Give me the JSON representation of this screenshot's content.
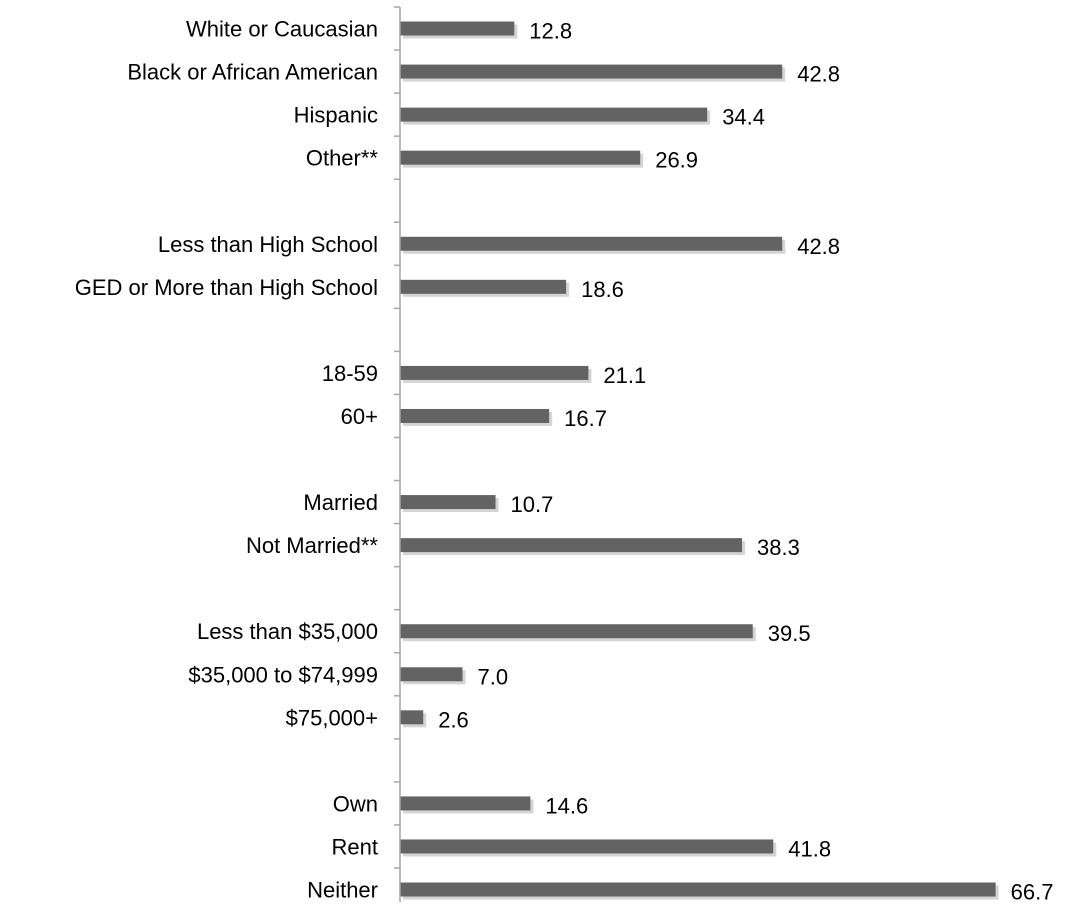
{
  "chart_data": {
    "type": "bar",
    "orientation": "horizontal",
    "title": "",
    "xlabel": "",
    "ylabel": "",
    "xlim": [
      0,
      66.7
    ],
    "grid": false,
    "legend": "none",
    "bar_color": "#636363",
    "bar_shadow_color": "#d4d4d4",
    "axis_color": "#a6a6a6",
    "groups": [
      {
        "categories": [
          "White or Caucasian",
          "Black or African American",
          "Hispanic",
          "Other**"
        ],
        "values": [
          12.8,
          42.8,
          34.4,
          26.9
        ]
      },
      {
        "categories": [
          "Less than High School",
          "GED or More than High School"
        ],
        "values": [
          42.8,
          18.6
        ]
      },
      {
        "categories": [
          "18-59",
          "60+"
        ],
        "values": [
          21.1,
          16.7
        ]
      },
      {
        "categories": [
          "Married",
          "Not Married**"
        ],
        "values": [
          10.7,
          38.3
        ]
      },
      {
        "categories": [
          "Less than $35,000",
          "$35,000 to $74,999",
          "$75,000+"
        ],
        "values": [
          39.5,
          7.0,
          2.6
        ]
      },
      {
        "categories": [
          "Own",
          "Rent",
          "Neither"
        ],
        "values": [
          14.6,
          41.8,
          66.7
        ]
      }
    ],
    "categories": [
      "White or Caucasian",
      "Black or African American",
      "Hispanic",
      "Other**",
      "Less than High School",
      "GED or More than High School",
      "18-59",
      "60+",
      "Married",
      "Not Married**",
      "Less than $35,000",
      "$35,000 to $74,999",
      "$75,000+",
      "Own",
      "Rent",
      "Neither"
    ],
    "values": [
      12.8,
      42.8,
      34.4,
      26.9,
      42.8,
      18.6,
      21.1,
      16.7,
      10.7,
      38.3,
      39.5,
      7.0,
      2.6,
      14.6,
      41.8,
      66.7
    ],
    "value_labels": [
      "12.8",
      "42.8",
      "34.4",
      "26.9",
      "42.8",
      "18.6",
      "21.1",
      "16.7",
      "10.7",
      "38.3",
      "39.5",
      "7.0",
      "2.6",
      "14.6",
      "41.8",
      "66.7"
    ]
  }
}
